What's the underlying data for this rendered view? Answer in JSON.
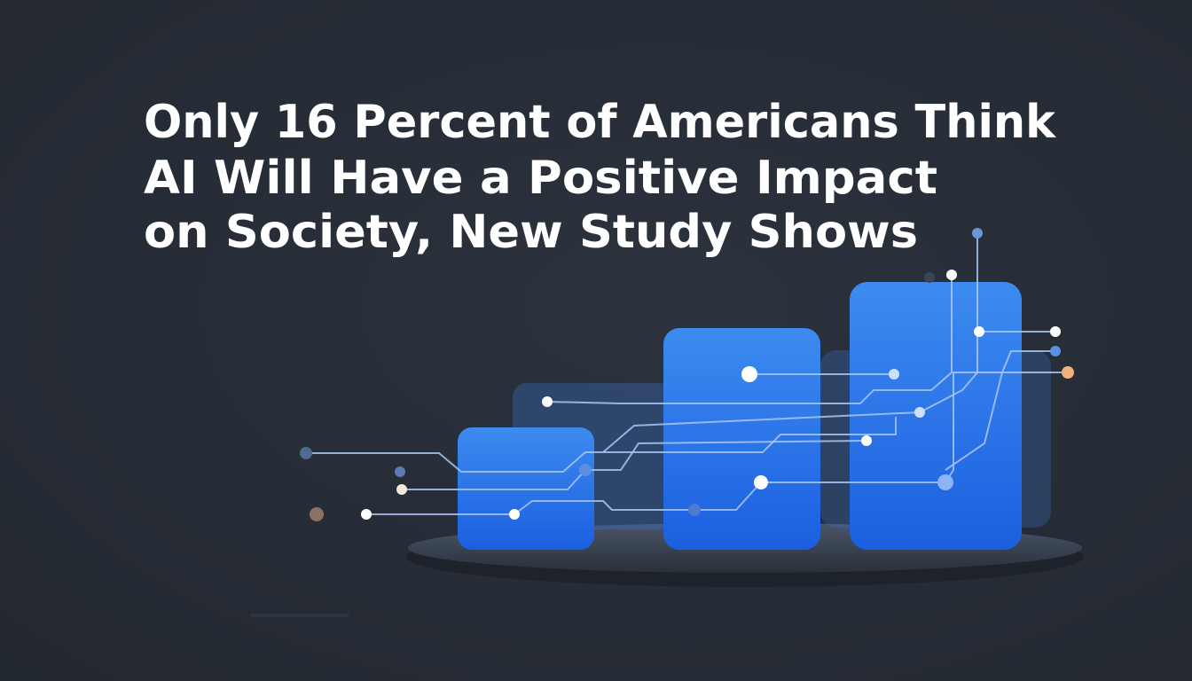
{
  "headline": {
    "lines": [
      "Only 16 Percent of Americans Think",
      "AI Will Have a Positive Impact",
      "on Society, New Study Shows"
    ]
  }
}
